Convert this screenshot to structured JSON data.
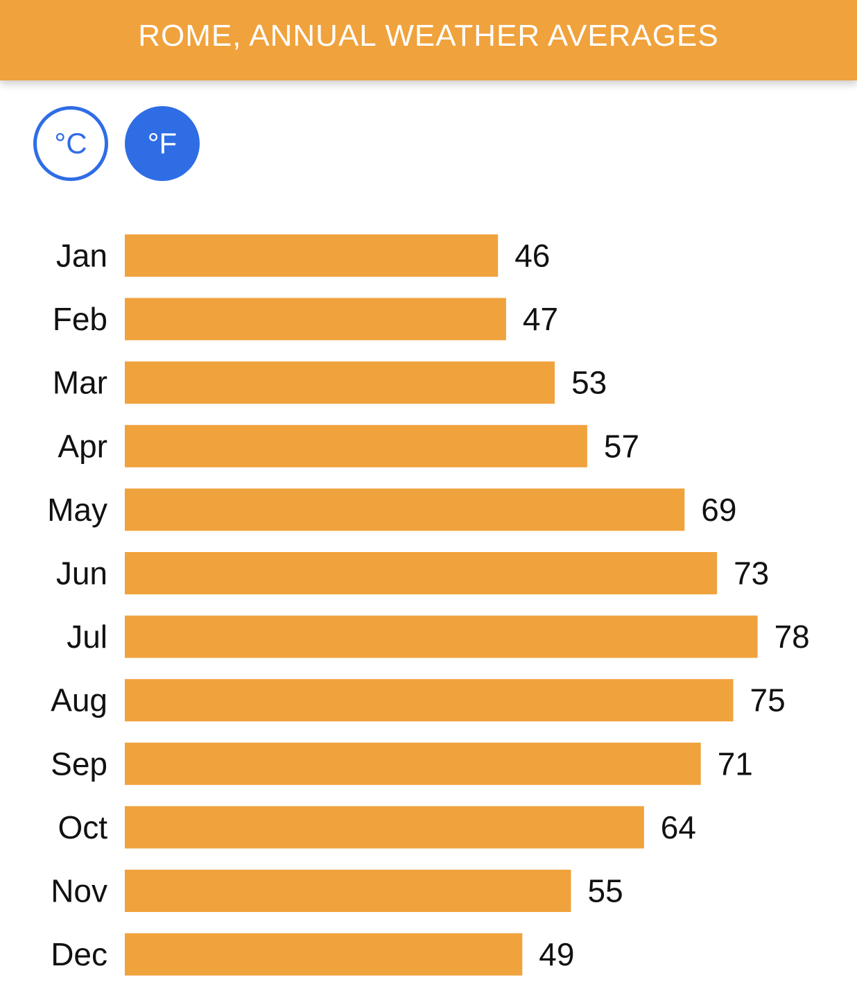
{
  "header": {
    "title": "ROME, ANNUAL WEATHER AVERAGES"
  },
  "units": {
    "celsius_label": "°C",
    "fahrenheit_label": "°F",
    "selected": "F"
  },
  "colors": {
    "accent": "#f0a23c",
    "toggle_blue": "#2f6de5",
    "label_text": "#111111"
  },
  "chart_data": {
    "type": "bar",
    "orientation": "horizontal",
    "categories": [
      "Jan",
      "Feb",
      "Mar",
      "Apr",
      "May",
      "Jun",
      "Jul",
      "Aug",
      "Sep",
      "Oct",
      "Nov",
      "Dec"
    ],
    "values": [
      46,
      47,
      53,
      57,
      69,
      73,
      78,
      75,
      71,
      64,
      55,
      49
    ],
    "title": "ROME, ANNUAL WEATHER AVERAGES",
    "data_labels": true,
    "grid": false
  }
}
